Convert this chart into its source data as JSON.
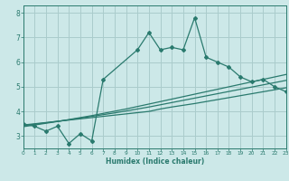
{
  "title": "",
  "xlabel": "Humidex (Indice chaleur)",
  "bg_color": "#cce8e8",
  "grid_color": "#aacccc",
  "line_color": "#2a7a6e",
  "x_data": [
    0,
    1,
    2,
    3,
    4,
    5,
    6,
    7,
    8,
    9,
    10,
    11,
    12,
    13,
    14,
    15,
    16,
    17,
    18,
    19,
    20,
    21,
    22,
    23
  ],
  "y_main": [
    3.5,
    3.4,
    3.2,
    3.4,
    2.7,
    3.1,
    2.8,
    5.3,
    null,
    null,
    6.5,
    7.2,
    6.5,
    6.6,
    6.5,
    7.8,
    6.2,
    6.0,
    5.8,
    5.4,
    5.2,
    5.3,
    5.0,
    4.8
  ],
  "y_trend1": [
    3.45,
    3.5,
    3.55,
    3.6,
    3.65,
    3.7,
    3.75,
    3.8,
    3.85,
    3.9,
    3.95,
    4.0,
    4.1,
    4.18,
    4.25,
    4.32,
    4.4,
    4.48,
    4.56,
    4.64,
    4.72,
    4.8,
    4.88,
    4.96
  ],
  "y_trend2": [
    3.42,
    3.48,
    3.54,
    3.6,
    3.66,
    3.73,
    3.8,
    3.87,
    3.94,
    4.02,
    4.1,
    4.18,
    4.27,
    4.36,
    4.45,
    4.54,
    4.63,
    4.72,
    4.81,
    4.9,
    4.99,
    5.08,
    5.17,
    5.26
  ],
  "y_trend3": [
    3.38,
    3.45,
    3.52,
    3.59,
    3.67,
    3.75,
    3.83,
    3.92,
    4.01,
    4.1,
    4.2,
    4.3,
    4.4,
    4.5,
    4.6,
    4.7,
    4.8,
    4.9,
    5.0,
    5.1,
    5.2,
    5.3,
    5.4,
    5.5
  ],
  "xlim": [
    0,
    23
  ],
  "ylim": [
    2.5,
    8.3
  ],
  "yticks": [
    3,
    4,
    5,
    6,
    7,
    8
  ],
  "xticks": [
    0,
    1,
    2,
    3,
    4,
    5,
    6,
    7,
    8,
    9,
    10,
    11,
    12,
    13,
    14,
    15,
    16,
    17,
    18,
    19,
    20,
    21,
    22,
    23
  ]
}
